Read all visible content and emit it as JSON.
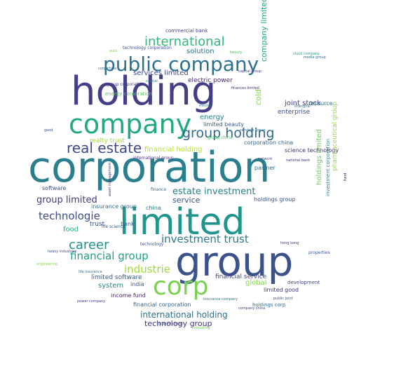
{
  "words": [
    {
      "text": "corporation",
      "color": "#2a7f8e"
    },
    {
      "text": "holding",
      "color": "#433e85"
    },
    {
      "text": "limited",
      "color": "#1f958b"
    },
    {
      "text": "group",
      "color": "#3b528b"
    },
    {
      "text": "company",
      "color": "#22a884"
    },
    {
      "text": "corp",
      "color": "#7ad151"
    },
    {
      "text": "public company",
      "color": "#2c728e"
    },
    {
      "text": "real estate",
      "color": "#3e4989"
    },
    {
      "text": "group holding",
      "color": "#31688e"
    },
    {
      "text": "international",
      "color": "#35b779"
    },
    {
      "text": "career",
      "color": "#21918c"
    },
    {
      "text": "investment trust",
      "color": "#2a788e"
    },
    {
      "text": "financial group",
      "color": "#1f9e89"
    },
    {
      "text": "group limited",
      "color": "#443983"
    },
    {
      "text": "technologie",
      "color": "#3e4a89"
    },
    {
      "text": "industrie",
      "color": "#a0da39"
    },
    {
      "text": "estate investment",
      "color": "#26828e"
    },
    {
      "text": "international holding",
      "color": "#2d708e"
    },
    {
      "text": "technology group",
      "color": "#46337e"
    },
    {
      "text": "service",
      "color": "#3b528b"
    },
    {
      "text": "limited software",
      "color": "#38588c"
    },
    {
      "text": "financial holding",
      "color": "#b5de2b"
    },
    {
      "text": "financial service",
      "color": "#404688"
    },
    {
      "text": "financial corporation",
      "color": "#32648e"
    },
    {
      "text": "system",
      "color": "#24868e"
    },
    {
      "text": "solution",
      "color": "#2e6f8e"
    },
    {
      "text": "services limited",
      "color": "#3f4788"
    },
    {
      "text": "electric power",
      "color": "#482576"
    },
    {
      "text": "energy",
      "color": "#27808e"
    },
    {
      "text": "limited beauty",
      "color": "#38598c"
    },
    {
      "text": "joint stock",
      "color": "#433e85"
    },
    {
      "text": "enterprise",
      "color": "#3e4c8a"
    },
    {
      "text": "resource",
      "color": "#2a768e"
    },
    {
      "text": "corporation china",
      "color": "#31688e"
    },
    {
      "text": "science technology",
      "color": "#472d7b"
    },
    {
      "text": "realty trust",
      "color": "#a5db36"
    },
    {
      "text": "insurance group",
      "color": "#2f6c8e"
    },
    {
      "text": "software",
      "color": "#3d4e8a"
    },
    {
      "text": "food",
      "color": "#29af7f"
    },
    {
      "text": "trust",
      "color": "#3b528b"
    },
    {
      "text": "bank",
      "color": "#34618d"
    },
    {
      "text": "china",
      "color": "#26828e"
    },
    {
      "text": "income fund",
      "color": "#481f70"
    },
    {
      "text": "india",
      "color": "#39568c"
    },
    {
      "text": "global",
      "color": "#84d44b"
    },
    {
      "text": "holdings corp",
      "color": "#31688e"
    },
    {
      "text": "limited good",
      "color": "#463480"
    },
    {
      "text": "development",
      "color": "#3e4a89"
    },
    {
      "text": "partner",
      "color": "#2c718e"
    },
    {
      "text": "holdings group",
      "color": "#3a548c"
    },
    {
      "text": "holdings limited",
      "color": "#6ccd5a"
    },
    {
      "text": "company limited",
      "color": "#20a486"
    },
    {
      "text": "pharmaceutical group",
      "color": "#95d840"
    },
    {
      "text": "investment corporation",
      "color": "#23898e"
    },
    {
      "text": "cold",
      "color": "#7fd34e"
    },
    {
      "text": "energy corporation",
      "color": "#5ec962"
    },
    {
      "text": "commercial bank",
      "color": "#414487"
    },
    {
      "text": "technology corporation",
      "color": "#3d4d8a"
    },
    {
      "text": "capital group",
      "color": "#433d84"
    },
    {
      "text": "group corporation",
      "color": "#424186"
    },
    {
      "text": "media group",
      "color": "#2d708e"
    },
    {
      "text": "technology",
      "color": "#3d4e8a"
    },
    {
      "text": "hong kong",
      "color": "#482979"
    },
    {
      "text": "properties",
      "color": "#38588c"
    },
    {
      "text": "international group",
      "color": "#46327e"
    },
    {
      "text": "life science",
      "color": "#355f8d"
    },
    {
      "text": "stock company",
      "color": "#1fa188"
    },
    {
      "text": "shanghai",
      "color": "#2a788e"
    },
    {
      "text": "company china",
      "color": "#433e85"
    },
    {
      "text": "property trust",
      "color": "#3b528b"
    },
    {
      "text": "consulting",
      "color": "#6ccd5a"
    },
    {
      "text": "finances limited",
      "color": "#482878"
    },
    {
      "text": "heavy industries",
      "color": "#3e4989"
    },
    {
      "text": "power company",
      "color": "#443983"
    },
    {
      "text": "insurance company",
      "color": "#2d708e"
    },
    {
      "text": "beauty",
      "color": "#4ac16d"
    },
    {
      "text": "capital",
      "color": "#2a768e"
    },
    {
      "text": "finance",
      "color": "#31688e"
    },
    {
      "text": "group china",
      "color": "#4ac16d"
    },
    {
      "text": "services group",
      "color": "#2f6b8e"
    },
    {
      "text": "national bank",
      "color": "#472c7a"
    },
    {
      "text": "asset management",
      "color": "#46317e"
    },
    {
      "text": "network",
      "color": "#404688"
    },
    {
      "text": "mining",
      "color": "#2e6e8e"
    },
    {
      "text": "engineering",
      "color": "#84d44b"
    },
    {
      "text": "life insurance",
      "color": "#2c728e"
    },
    {
      "text": "public joint",
      "color": "#3e4a89"
    },
    {
      "text": "fund",
      "color": "#440154"
    },
    {
      "text": "corp china",
      "color": "#31688e"
    },
    {
      "text": "good",
      "color": "#3b528b"
    },
    {
      "text": "auto",
      "color": "#7ad151"
    }
  ]
}
